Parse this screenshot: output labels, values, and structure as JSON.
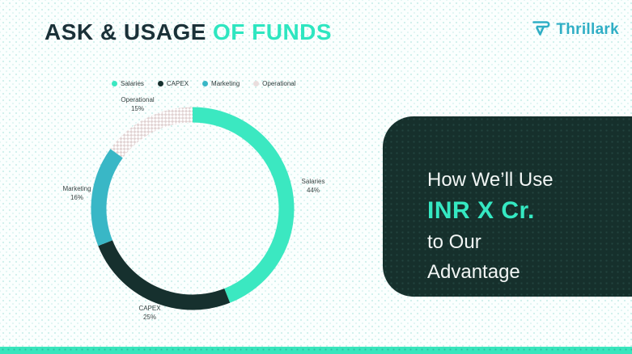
{
  "slide": {
    "title": {
      "part1": "ASK & USAGE",
      "part2": "OF FUNDS"
    },
    "brand": {
      "name": "Thrillark",
      "icon": "thrillark-funnel-icon",
      "color": "#2FAEC5"
    },
    "card": {
      "line1": "How We’ll Use",
      "line2": "INR X Cr.",
      "line3": "to Our",
      "line4": "Advantage",
      "bg_color": "#16302C",
      "accent_color": "#35E8C2"
    },
    "footer_bar_color": "#38E6BD"
  },
  "chart_data": {
    "type": "pie",
    "donut": true,
    "title": "Ask & Usage of Funds",
    "categories": [
      "Salaries",
      "CAPEX",
      "Marketing",
      "Operational"
    ],
    "values": [
      44,
      25,
      16,
      15
    ],
    "segments": [
      {
        "label": "Salaries",
        "pct": 44,
        "pct_text": "44%",
        "color": "#3BE8C1"
      },
      {
        "label": "CAPEX",
        "pct": 25,
        "pct_text": "25%",
        "color": "#16302E"
      },
      {
        "label": "Marketing",
        "pct": 16,
        "pct_text": "16%",
        "color": "#39B7C6"
      },
      {
        "label": "Operational",
        "pct": 15,
        "pct_text": "15%",
        "color": "#E7DBDB",
        "pattern": "checker"
      }
    ],
    "legend_position": "top",
    "start_angle_deg": -90,
    "direction": "clockwise",
    "ring_stroke_width": 19
  }
}
